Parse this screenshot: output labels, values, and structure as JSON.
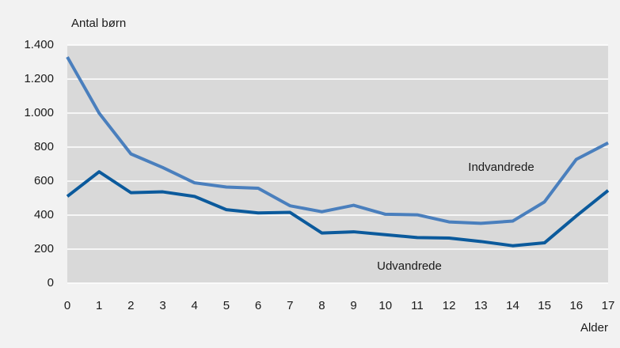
{
  "chart_data": {
    "type": "line",
    "y_label": "Antal børn",
    "x_label": "Alder",
    "x": [
      0,
      1,
      2,
      3,
      4,
      5,
      6,
      7,
      8,
      9,
      10,
      11,
      12,
      13,
      14,
      15,
      16,
      17
    ],
    "xlim": [
      0,
      17
    ],
    "xticks": [
      0,
      1,
      2,
      3,
      4,
      5,
      6,
      7,
      8,
      9,
      10,
      11,
      12,
      13,
      14,
      15,
      16,
      17
    ],
    "ylim": [
      0,
      1400
    ],
    "yticks": [
      0,
      200,
      400,
      600,
      800,
      {
        "value": 1000,
        "label": "1.000"
      },
      {
        "value": 1200,
        "label": "1.200"
      },
      {
        "value": 1400,
        "label": "1.400"
      }
    ],
    "grid": true,
    "series": [
      {
        "name": "Indvandrede",
        "color": "#4a7fbd",
        "values": [
          1330,
          1000,
          760,
          680,
          590,
          565,
          558,
          455,
          420,
          458,
          405,
          402,
          360,
          352,
          365,
          478,
          728,
          825
        ]
      },
      {
        "name": "Udvandrede",
        "color": "#0b5a9c",
        "values": [
          510,
          655,
          532,
          537,
          510,
          432,
          413,
          416,
          295,
          302,
          285,
          268,
          265,
          245,
          220,
          237,
          395,
          545
        ]
      }
    ]
  }
}
